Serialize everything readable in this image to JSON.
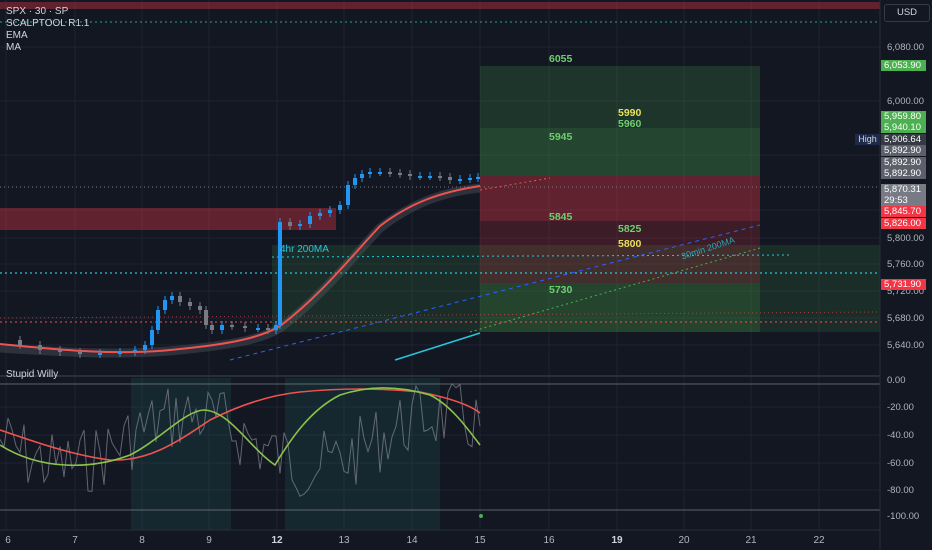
{
  "header": {
    "symbol": "SPX · 30 · SP",
    "indicators": [
      "SCALPTOOL R1.1",
      "EMA",
      "MA"
    ],
    "currency": "USD"
  },
  "lower_pane": {
    "title": "Stupid Willy"
  },
  "annotations": {
    "ma_4hr": "4hr 200MA",
    "ma_30min": "30min 200MA"
  },
  "levels": [
    {
      "text": "6055",
      "color": "#6fcf6f"
    },
    {
      "text": "5990",
      "color": "#e8e25a"
    },
    {
      "text": "5960",
      "color": "#6fcf6f"
    },
    {
      "text": "5945",
      "color": "#6fcf6f"
    },
    {
      "text": "5845",
      "color": "#6fcf6f"
    },
    {
      "text": "5825",
      "color": "#6fcf6f"
    },
    {
      "text": "5800",
      "color": "#e8e25a"
    },
    {
      "text": "5730",
      "color": "#6fcf6f"
    }
  ],
  "y_axis_labels": [
    "6,080.00",
    "6,000.00",
    "5,800.00",
    "5,760.00",
    "5,720.00",
    "5,680.00",
    "5,640.00"
  ],
  "price_tags": [
    {
      "text": "6,053.90",
      "bg": "#4caf50",
      "fg": "#ffffff"
    },
    {
      "text": "5,959.80",
      "bg": "#4caf50",
      "fg": "#ffffff"
    },
    {
      "text": "5,940.10",
      "bg": "#4caf50",
      "fg": "#ffffff"
    },
    {
      "text": "5,906.64",
      "bg": "#363a45",
      "fg": "#ffffff"
    },
    {
      "text": "5,892.90",
      "bg": "#5d606b",
      "fg": "#ffffff"
    },
    {
      "text": "5,892.90",
      "bg": "#5d606b",
      "fg": "#ffffff"
    },
    {
      "text": "5,892.90",
      "bg": "#5d606b",
      "fg": "#ffffff"
    },
    {
      "text": "5,870.31",
      "bg": "#787b86",
      "fg": "#ffffff"
    },
    {
      "text": "29:53",
      "bg": "#787b86",
      "fg": "#ffffff"
    },
    {
      "text": "5,845.70",
      "bg": "#f23645",
      "fg": "#ffffff"
    },
    {
      "text": "5,826.00",
      "bg": "#f23645",
      "fg": "#ffffff"
    },
    {
      "text": "5,731.90",
      "bg": "#f23645",
      "fg": "#ffffff"
    }
  ],
  "high_label": "High",
  "osc_axis_labels": [
    "0.00",
    "-20.00",
    "-40.00",
    "-60.00",
    "-80.00",
    "-100.00"
  ],
  "x_axis_labels": [
    "6",
    "7",
    "8",
    "9",
    "12",
    "13",
    "14",
    "15",
    "16",
    "19",
    "20",
    "21",
    "22"
  ],
  "colors": {
    "bg": "#131722",
    "up": "#2196f3",
    "down": "#787b86",
    "ema": "#ef5350",
    "zone_green": "#4caf50",
    "zone_red": "#f23645",
    "cyan": "#26c6da"
  }
}
